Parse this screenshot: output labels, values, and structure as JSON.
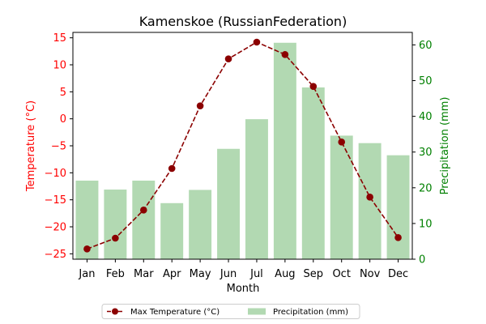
{
  "chart_data": {
    "type": "bar",
    "title": "Kamenskoe (RussianFederation)",
    "xlabel": "Month",
    "categories": [
      "Jan",
      "Feb",
      "Mar",
      "Apr",
      "May",
      "Jun",
      "Jul",
      "Aug",
      "Sep",
      "Oct",
      "Nov",
      "Dec"
    ],
    "y_left": {
      "label": "Temperature (°C)",
      "ylim": [
        -26,
        16
      ],
      "ticks": [
        -25,
        -20,
        -15,
        -10,
        -5,
        0,
        5,
        10,
        15
      ],
      "tick_labels": [
        "−25",
        "−20",
        "−15",
        "−10",
        "−5",
        "0",
        "5",
        "10",
        "15"
      ],
      "color": "#ff0000"
    },
    "y_right": {
      "label": "Precipitation (mm)",
      "ylim": [
        0,
        63.5
      ],
      "ticks": [
        0,
        10,
        20,
        30,
        40,
        50,
        60
      ],
      "tick_labels": [
        "0",
        "10",
        "20",
        "30",
        "40",
        "50",
        "60"
      ],
      "color": "#008000"
    },
    "series": [
      {
        "name": "Max Temperature (°C)",
        "type": "line",
        "axis": "left",
        "color": "#8b0000",
        "values": [
          -24.1,
          -22.1,
          -16.9,
          -9.2,
          2.4,
          11.1,
          14.2,
          11.9,
          6.0,
          -4.3,
          -14.5,
          -22.0
        ]
      },
      {
        "name": "Precipitation (mm)",
        "type": "bar",
        "axis": "right",
        "color": "#b2d9b2",
        "values": [
          22.0,
          19.5,
          22.0,
          15.7,
          19.4,
          30.9,
          39.2,
          60.6,
          48.1,
          34.6,
          32.5,
          29.1
        ]
      }
    ],
    "legend_position": "bottom-center",
    "grid": false
  }
}
